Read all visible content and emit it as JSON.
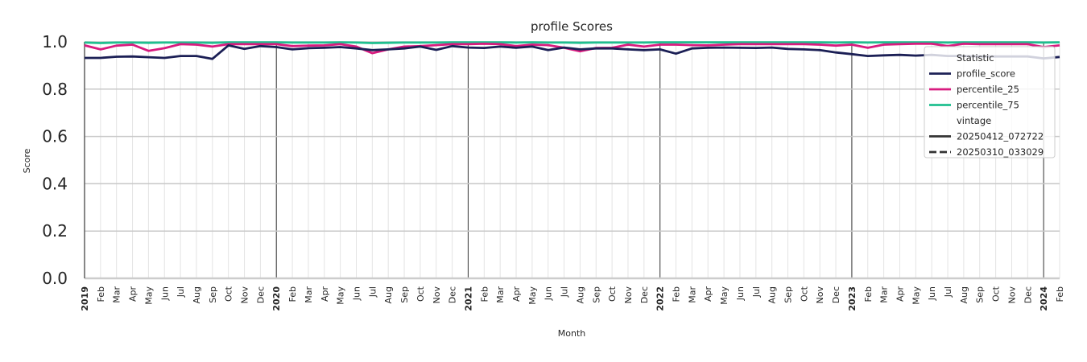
{
  "chart_data": {
    "type": "line",
    "title": "profile Scores",
    "xlabel": "Month",
    "ylabel": "Score",
    "ylim": [
      0.0,
      1.0
    ],
    "yticks": [
      "0.0",
      "0.2",
      "0.4",
      "0.6",
      "0.8",
      "1.0"
    ],
    "grid": true,
    "legend_position": "upper right",
    "year_ticks": [
      "2019",
      "2020",
      "2021",
      "2022",
      "2023",
      "2024"
    ],
    "x": [
      "2019-01",
      "2019-02",
      "2019-03",
      "2019-04",
      "2019-05",
      "2019-06",
      "2019-07",
      "2019-08",
      "2019-09",
      "2019-10",
      "2019-11",
      "2019-12",
      "2020-01",
      "2020-02",
      "2020-03",
      "2020-04",
      "2020-05",
      "2020-06",
      "2020-07",
      "2020-08",
      "2020-09",
      "2020-10",
      "2020-11",
      "2020-12",
      "2021-01",
      "2021-02",
      "2021-03",
      "2021-04",
      "2021-05",
      "2021-06",
      "2021-07",
      "2021-08",
      "2021-09",
      "2021-10",
      "2021-11",
      "2021-12",
      "2022-01",
      "2022-02",
      "2022-03",
      "2022-04",
      "2022-05",
      "2022-06",
      "2022-07",
      "2022-08",
      "2022-09",
      "2022-10",
      "2022-11",
      "2022-12",
      "2023-01",
      "2023-02",
      "2023-03",
      "2023-04",
      "2023-05",
      "2023-06",
      "2023-07",
      "2023-08",
      "2023-09",
      "2023-10",
      "2023-11",
      "2023-12",
      "2024-01",
      "2024-02"
    ],
    "x_tick_labels": [
      "2019",
      "Feb",
      "Mar",
      "Apr",
      "May",
      "Jun",
      "Jul",
      "Aug",
      "Sep",
      "Oct",
      "Nov",
      "Dec",
      "2020",
      "Feb",
      "Mar",
      "Apr",
      "May",
      "Jun",
      "Jul",
      "Aug",
      "Sep",
      "Oct",
      "Nov",
      "Dec",
      "2021",
      "Feb",
      "Mar",
      "Apr",
      "May",
      "Jun",
      "Jul",
      "Aug",
      "Sep",
      "Oct",
      "Nov",
      "Dec",
      "2022",
      "Feb",
      "Mar",
      "Apr",
      "May",
      "Jun",
      "Jul",
      "Aug",
      "Sep",
      "Oct",
      "Nov",
      "Dec",
      "2023",
      "Feb",
      "Mar",
      "Apr",
      "May",
      "Jun",
      "Jul",
      "Aug",
      "Sep",
      "Oct",
      "Nov",
      "Dec",
      "2024",
      "Feb"
    ],
    "series": [
      {
        "name": "profile_score",
        "color": "#1b1f55",
        "vintage": "20250412_072722",
        "values": [
          0.932,
          0.932,
          0.937,
          0.938,
          0.935,
          0.932,
          0.94,
          0.94,
          0.928,
          0.985,
          0.97,
          0.982,
          0.978,
          0.968,
          0.973,
          0.975,
          0.978,
          0.972,
          0.965,
          0.968,
          0.972,
          0.98,
          0.966,
          0.982,
          0.976,
          0.974,
          0.98,
          0.975,
          0.98,
          0.965,
          0.976,
          0.968,
          0.972,
          0.972,
          0.968,
          0.965,
          0.968,
          0.95,
          0.972,
          0.975,
          0.976,
          0.975,
          0.974,
          0.976,
          0.97,
          0.968,
          0.965,
          0.955,
          0.948,
          0.94,
          0.943,
          0.945,
          0.942,
          0.945,
          0.94,
          0.94,
          0.938,
          0.938,
          0.938,
          0.938,
          0.93,
          0.936
        ]
      },
      {
        "name": "percentile_25",
        "color": "#d81b7f",
        "vintage": "20250412_072722",
        "values": [
          0.985,
          0.968,
          0.984,
          0.988,
          0.962,
          0.973,
          0.99,
          0.988,
          0.98,
          0.99,
          0.99,
          0.99,
          0.99,
          0.982,
          0.984,
          0.985,
          0.99,
          0.98,
          0.952,
          0.968,
          0.98,
          0.982,
          0.986,
          0.99,
          0.99,
          0.992,
          0.99,
          0.982,
          0.988,
          0.986,
          0.975,
          0.96,
          0.974,
          0.975,
          0.988,
          0.98,
          0.988,
          0.988,
          0.986,
          0.985,
          0.988,
          0.99,
          0.99,
          0.99,
          0.99,
          0.99,
          0.988,
          0.984,
          0.988,
          0.975,
          0.988,
          0.99,
          0.992,
          0.992,
          0.982,
          0.992,
          0.99,
          0.99,
          0.99,
          0.99,
          0.978,
          0.985
        ]
      },
      {
        "name": "percentile_75",
        "color": "#1fbf8f",
        "vintage": "20250412_072722",
        "values": [
          0.997,
          0.995,
          0.997,
          0.997,
          0.996,
          0.997,
          0.997,
          0.997,
          0.996,
          0.998,
          0.998,
          0.998,
          0.998,
          0.997,
          0.997,
          0.997,
          0.998,
          0.997,
          0.995,
          0.996,
          0.997,
          0.997,
          0.997,
          0.998,
          0.998,
          0.998,
          0.998,
          0.997,
          0.998,
          0.997,
          0.997,
          0.996,
          0.997,
          0.997,
          0.997,
          0.997,
          0.998,
          0.998,
          0.998,
          0.998,
          0.998,
          0.998,
          0.998,
          0.998,
          0.998,
          0.998,
          0.998,
          0.997,
          0.998,
          0.997,
          0.998,
          0.998,
          0.998,
          0.998,
          0.997,
          0.998,
          0.998,
          0.998,
          0.998,
          0.998,
          0.997,
          0.998
        ]
      }
    ],
    "legend": {
      "title": "Statistic",
      "items": [
        {
          "label": "profile_score",
          "color": "#1b1f55",
          "style": "solid"
        },
        {
          "label": "percentile_25",
          "color": "#d81b7f",
          "style": "solid"
        },
        {
          "label": "percentile_75",
          "color": "#1fbf8f",
          "style": "solid"
        }
      ],
      "subtitle": "vintage",
      "vintage_items": [
        {
          "label": "20250412_072722",
          "color": "#333333",
          "style": "solid"
        },
        {
          "label": "20250310_033029",
          "color": "#333333",
          "style": "dashed"
        }
      ]
    }
  }
}
